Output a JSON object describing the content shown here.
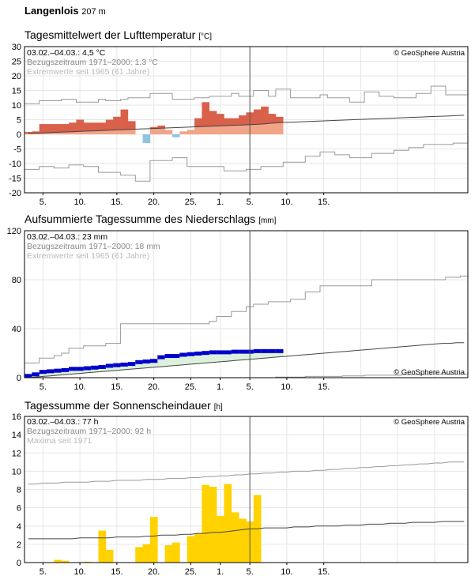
{
  "header": {
    "station": "Langenlois",
    "altitude": "207 m"
  },
  "copyright": "© GeoSphere Austria",
  "x_tick_labels": [
    "5.",
    "10.",
    "15.",
    "20.",
    "25.",
    "1.",
    "5.",
    "10.",
    "15."
  ],
  "colors": {
    "temp_warm_above": "#d9604a",
    "temp_normal_above": "#f2a488",
    "temp_cold": "#8fc3e0",
    "precip_excess": "#0000cc",
    "precip_normal": "#dcf0dc",
    "sun": "#ffd200",
    "ref_line": "#444444",
    "extreme_line": "#9a9a9a",
    "grid": "#e6e6e6"
  },
  "temperature": {
    "title": "Tagesmittelwert der Lufttemperatur",
    "unit": "[°C]",
    "info_current": "03.02.–04.03.: 4,5 °C",
    "info_reference": "Bezugszeitraum 1971–2000: 1,3 °C",
    "info_extremes": "Extremwerte seit 1965 (61 Jahre)"
  },
  "precipitation": {
    "title": "Aufsummierte Tagessumme des Niederschlags",
    "unit": "[mm]",
    "info_current": "03.02.–04.03.: 23 mm",
    "info_reference": "Bezugszeitraum 1971–2000: 18 mm",
    "info_extremes": "Extremwerte seit 1965 (61 Jahre)"
  },
  "sunshine": {
    "title": "Tagessumme der Sonnenscheindauer",
    "unit": "[h]",
    "info_current": "03.02.–04.03.: 77 h",
    "info_reference": "Bezugszeitraum 1971–2000: 92 h",
    "info_extremes": "Maxima seit 1971"
  },
  "chart_data": [
    {
      "type": "bar",
      "title": "Tagesmittelwert der Lufttemperatur",
      "ylabel": "°C",
      "ylim": [
        -20,
        30
      ],
      "yticks": [
        30,
        25,
        20,
        15,
        10,
        5,
        0,
        -5,
        -10,
        -15,
        -20
      ],
      "x_start": "2025-02-03",
      "values": [
        0.8,
        1.0,
        3.5,
        3.5,
        3.5,
        3.5,
        4.0,
        5.0,
        4.0,
        4.0,
        4.0,
        5.0,
        6.0,
        8.5,
        4.5,
        0.0,
        -3.0,
        2.5,
        3.0,
        1.5,
        -1.0,
        1.0,
        1.5,
        5.5,
        11.0,
        8.0,
        7.0,
        5.5,
        5.5,
        6.5,
        7.5,
        8.5,
        9.5,
        7.0,
        6.0
      ],
      "normal": [
        0.3,
        0.4,
        0.5,
        0.6,
        0.7,
        0.8,
        0.9,
        1.0,
        1.1,
        1.2,
        1.3,
        1.4,
        1.5,
        1.6,
        1.7,
        1.8,
        1.9,
        2.0,
        2.1,
        2.2,
        2.3,
        2.4,
        2.5,
        2.6,
        2.7,
        2.8,
        2.9,
        3.0,
        3.1,
        3.2,
        3.3,
        3.4,
        3.6,
        3.8,
        4.0,
        4.1,
        4.2,
        4.3,
        4.4,
        4.5,
        4.6,
        4.7,
        4.8,
        4.9,
        5.0,
        5.1,
        5.2,
        5.3,
        5.4,
        5.5,
        5.6,
        5.7,
        5.8,
        5.9,
        6.0,
        6.1,
        6.2,
        6.3,
        6.4,
        6.5
      ],
      "max_extreme": [
        10.5,
        10.5,
        11.5,
        11.5,
        11.5,
        12.0,
        12.0,
        11.0,
        11.0,
        11.0,
        12.0,
        11.5,
        11.5,
        12.0,
        12.5,
        12.5,
        12.5,
        14.0,
        14.0,
        14.0,
        12.0,
        12.0,
        12.0,
        12.5,
        12.5,
        13.0,
        13.0,
        13.0,
        14.0,
        13.0,
        13.0,
        15.0,
        15.0,
        13.0,
        15.5,
        15.5,
        12.5,
        12.5,
        12.5,
        12.5,
        13.5,
        12.5,
        12.5,
        12.5,
        11.0,
        11.0,
        14.5,
        14.5,
        13.0,
        13.0,
        12.5,
        12.5,
        12.5,
        14.0,
        14.0,
        16.5,
        16.5,
        13.5,
        13.5,
        13.5
      ],
      "min_extreme": [
        -12.0,
        -12.0,
        -11.0,
        -11.0,
        -11.5,
        -11.5,
        -10.5,
        -10.5,
        -11.0,
        -11.0,
        -13.0,
        -13.0,
        -13.0,
        -14.0,
        -14.0,
        -16.0,
        -16.0,
        -9.0,
        -9.0,
        -9.0,
        -8.0,
        -8.0,
        -11.0,
        -11.0,
        -11.0,
        -11.0,
        -11.0,
        -12.5,
        -12.5,
        -12.5,
        -12.0,
        -12.0,
        -11.0,
        -11.0,
        -11.0,
        -9.5,
        -9.5,
        -9.5,
        -7.5,
        -7.5,
        -6.0,
        -6.0,
        -7.0,
        -7.0,
        -8.0,
        -8.0,
        -8.0,
        -6.5,
        -6.5,
        -6.5,
        -5.5,
        -5.5,
        -4.5,
        -4.5,
        -3.5,
        -3.5,
        -3.5,
        -3.5,
        -3.0,
        -3.0
      ]
    },
    {
      "type": "area",
      "title": "Aufsummierte Tagessumme des Niederschlags",
      "ylabel": "mm",
      "ylim": [
        0,
        120
      ],
      "yticks": [
        120,
        80,
        40,
        0
      ],
      "x_start": "2025-02-03",
      "cumulative": [
        2.7,
        4.0,
        6.0,
        6.5,
        7.0,
        7.5,
        8.5,
        8.5,
        9.0,
        9.5,
        10.0,
        11.0,
        11.5,
        12.0,
        12.5,
        14.0,
        14.5,
        15.0,
        18.0,
        19.0,
        19.0,
        20.0,
        20.5,
        21.0,
        21.5,
        22.0,
        22.0,
        22.0,
        22.5,
        22.5,
        22.5,
        23.0,
        23.0,
        23.0,
        23.0
      ],
      "normal_cumulative": [
        0.0,
        0.5,
        1.0,
        1.5,
        2.0,
        2.5,
        3.0,
        3.5,
        4.0,
        4.5,
        5.0,
        5.5,
        6.0,
        6.5,
        7.0,
        7.5,
        8.0,
        8.5,
        9.0,
        9.5,
        10.0,
        10.5,
        11.0,
        11.5,
        12.0,
        12.5,
        13.0,
        13.5,
        14.0,
        14.5,
        15.0,
        15.5,
        16.0,
        16.5,
        17.0,
        17.5,
        18.0,
        18.5,
        19.0,
        19.5,
        20.0,
        20.5,
        21.0,
        21.5,
        22.0,
        22.5,
        23.0,
        23.5,
        24.0,
        24.5,
        25.0,
        25.5,
        26.0,
        26.5,
        27.0,
        27.5,
        28.0,
        28.0,
        28.5,
        28.5
      ],
      "max_extreme_cumulative": [
        12,
        12,
        16,
        16,
        18,
        20,
        24,
        24,
        26,
        26,
        26,
        28,
        28,
        44,
        44,
        44,
        44,
        44,
        44,
        44,
        44,
        44,
        44,
        44,
        44,
        46,
        50,
        50,
        54,
        54,
        58,
        60,
        60,
        62,
        62,
        62,
        64,
        64,
        70,
        70,
        75,
        75,
        75,
        75,
        75,
        75,
        75,
        80,
        80,
        80,
        80,
        80,
        80,
        80,
        80,
        80,
        80,
        82,
        82,
        83
      ],
      "min_extreme_cumulative": [
        0,
        0,
        0,
        0,
        0,
        0,
        0,
        0,
        0,
        0,
        0,
        0,
        0,
        0,
        0,
        0,
        0,
        0,
        0,
        0,
        0,
        0,
        0,
        0,
        0,
        0,
        0,
        0,
        0,
        0,
        0,
        0,
        0,
        0,
        0.5,
        0.5,
        0.5,
        0.5,
        1,
        1,
        1,
        1,
        1,
        1.5,
        1.5,
        1.5,
        2,
        2,
        2,
        2,
        2,
        2.5,
        2.5,
        2.5,
        2.5,
        3,
        3,
        3,
        3,
        3
      ]
    },
    {
      "type": "bar",
      "title": "Tagessumme der Sonnenscheindauer",
      "ylabel": "h",
      "ylim": [
        0,
        16
      ],
      "yticks": [
        16,
        14,
        12,
        10,
        8,
        6,
        4,
        2,
        0
      ],
      "x_start": "2025-02-03",
      "values": [
        0.0,
        0.0,
        0.0,
        0.0,
        0.3,
        0.2,
        0.0,
        0.0,
        0.1,
        0.0,
        3.5,
        1.4,
        0.0,
        0.0,
        0.0,
        1.7,
        2.0,
        5.0,
        0.0,
        1.9,
        2.2,
        0.0,
        2.9,
        3.2,
        8.5,
        8.3,
        5.1,
        8.6,
        5.5,
        4.8,
        4.5,
        7.4
      ],
      "normal": [
        2.6,
        2.6,
        2.6,
        2.6,
        2.6,
        2.6,
        2.6,
        2.7,
        2.7,
        2.7,
        2.7,
        2.7,
        2.8,
        2.8,
        2.8,
        2.8,
        2.9,
        2.9,
        3.0,
        3.0,
        3.0,
        3.1,
        3.1,
        3.2,
        3.2,
        3.3,
        3.3,
        3.4,
        3.5,
        3.6,
        3.7,
        3.7,
        3.8,
        3.8,
        3.8,
        3.8,
        3.9,
        3.9,
        3.9,
        4.0,
        4.0,
        4.0,
        4.0,
        4.1,
        4.1,
        4.1,
        4.2,
        4.2,
        4.2,
        4.3,
        4.3,
        4.3,
        4.4,
        4.4,
        4.4,
        4.4,
        4.5,
        4.5,
        4.5,
        4.5
      ],
      "max_extreme": [
        8.6,
        8.6,
        8.7,
        8.7,
        8.7,
        8.8,
        8.8,
        8.8,
        8.8,
        8.9,
        8.9,
        8.9,
        9.0,
        9.0,
        9.0,
        9.0,
        9.1,
        9.1,
        9.1,
        9.2,
        9.2,
        9.2,
        9.3,
        9.3,
        9.4,
        9.4,
        9.5,
        9.5,
        9.6,
        9.6,
        9.7,
        9.7,
        9.8,
        9.8,
        9.9,
        9.9,
        10.0,
        10.0,
        10.0,
        10.1,
        10.1,
        10.2,
        10.2,
        10.3,
        10.3,
        10.4,
        10.4,
        10.5,
        10.5,
        10.6,
        10.6,
        10.7,
        10.7,
        10.8,
        10.8,
        10.9,
        10.9,
        11.0,
        11.0,
        11.0
      ]
    }
  ]
}
